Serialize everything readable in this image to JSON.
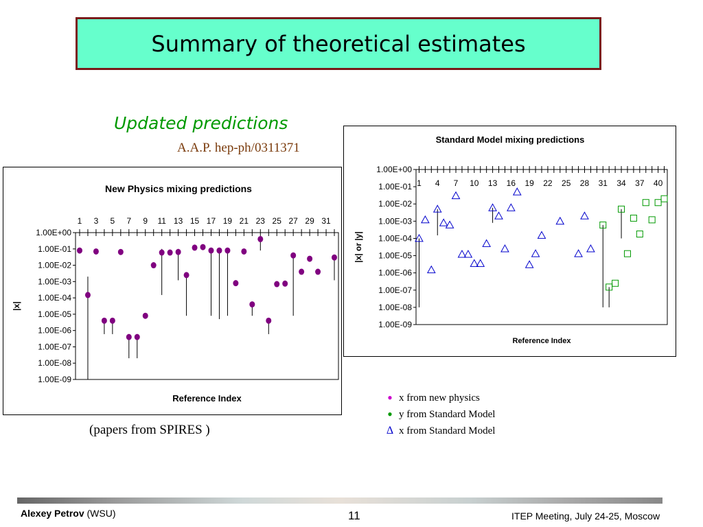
{
  "slide": {
    "title": "Summary of theoretical estimates",
    "subtitle": "Updated predictions",
    "reference": "A.A.P. hep-ph/0311371",
    "papers_note": "(papers from SPIRES )"
  },
  "legend": [
    {
      "marker": "•",
      "label": "x from new physics",
      "color": "#cc00cc"
    },
    {
      "marker": "•",
      "label": "y from Standard Model",
      "color": "#009900"
    },
    {
      "marker": "Δ",
      "label": "x from Standard Model",
      "color": "#0000cc"
    }
  ],
  "footer": {
    "author": "Alexey Petrov",
    "affiliation": "(WSU)",
    "page": "11",
    "event": "ITEP Meeting, July 24-25, Moscow"
  },
  "chart_data": [
    {
      "type": "scatter",
      "title": "New Physics mixing predictions",
      "xlabel": "Reference Index",
      "ylabel": "|x|",
      "yscale": "log",
      "ylim": [
        1e-09,
        1
      ],
      "yticks": [
        "1.00E+00",
        "1.00E-01",
        "1.00E-02",
        "1.00E-03",
        "1.00E-04",
        "1.00E-05",
        "1.00E-06",
        "1.00E-07",
        "1.00E-08",
        "1.00E-09"
      ],
      "xlim": [
        0.5,
        32.5
      ],
      "xticks": [
        "1",
        "3",
        "5",
        "7",
        "9",
        "11",
        "13",
        "15",
        "17",
        "19",
        "21",
        "23",
        "25",
        "27",
        "29",
        "31"
      ],
      "x_axis_position": "top",
      "series": [
        {
          "marker": "dot",
          "color": "#800080",
          "points": [
            {
              "x": 1,
              "y": 0.08
            },
            {
              "x": 2,
              "y": 0.00015,
              "err_low": 1e-09,
              "err_high": 0.002
            },
            {
              "x": 3,
              "y": 0.07
            },
            {
              "x": 4,
              "y": 4e-06,
              "err_low": 6e-07
            },
            {
              "x": 5,
              "y": 4e-06,
              "err_low": 6e-07
            },
            {
              "x": 6,
              "y": 0.065
            },
            {
              "x": 7,
              "y": 4e-07,
              "err_low": 2e-08
            },
            {
              "x": 8,
              "y": 4e-07,
              "err_low": 2e-08
            },
            {
              "x": 9,
              "y": 8e-06
            },
            {
              "x": 10,
              "y": 0.01
            },
            {
              "x": 11,
              "y": 0.06,
              "err_low": 0.00015,
              "err_high": 0.1
            },
            {
              "x": 12,
              "y": 0.06
            },
            {
              "x": 13,
              "y": 0.065,
              "err_low": 0.0012,
              "err_high": 0.1
            },
            {
              "x": 14,
              "y": 0.0025,
              "err_low": 8e-06
            },
            {
              "x": 15,
              "y": 0.12
            },
            {
              "x": 16,
              "y": 0.13
            },
            {
              "x": 17,
              "y": 0.08,
              "err_low": 8e-06
            },
            {
              "x": 18,
              "y": 0.08,
              "err_low": 5e-06
            },
            {
              "x": 19,
              "y": 0.08,
              "err_low": 8e-06
            },
            {
              "x": 20,
              "y": 0.0008
            },
            {
              "x": 21,
              "y": 0.07
            },
            {
              "x": 22,
              "y": 4e-05,
              "err_low": 8e-06
            },
            {
              "x": 23,
              "y": 0.4,
              "err_low": 0.08
            },
            {
              "x": 24,
              "y": 4e-06,
              "err_low": 6e-07
            },
            {
              "x": 25,
              "y": 0.0007
            },
            {
              "x": 26,
              "y": 0.00075
            },
            {
              "x": 27,
              "y": 0.04,
              "err_low": 8e-06
            },
            {
              "x": 28,
              "y": 0.004
            },
            {
              "x": 29,
              "y": 0.025
            },
            {
              "x": 30,
              "y": 0.004
            },
            {
              "x": 32,
              "y": 0.03,
              "err_low": 0.0012
            }
          ]
        }
      ]
    },
    {
      "type": "scatter",
      "title": "Standard Model mixing predictions",
      "xlabel": "Reference Index",
      "ylabel": "|x| or |y|",
      "yscale": "log",
      "ylim": [
        1e-09,
        1
      ],
      "yticks": [
        "1.00E+00",
        "1.00E-01",
        "1.00E-02",
        "1.00E-03",
        "1.00E-04",
        "1.00E-05",
        "1.00E-06",
        "1.00E-07",
        "1.00E-08",
        "1.00E-09"
      ],
      "xlim": [
        0.5,
        41.5
      ],
      "xticks": [
        "1",
        "4",
        "7",
        "10",
        "13",
        "16",
        "19",
        "22",
        "25",
        "28",
        "31",
        "34",
        "37",
        "40"
      ],
      "x_axis_position": "top",
      "series": [
        {
          "marker": "triangle",
          "color": "#0000cc",
          "points": [
            {
              "x": 1,
              "y": 0.0001,
              "err_low": 1e-08
            },
            {
              "x": 2,
              "y": 0.0012
            },
            {
              "x": 3,
              "y": 1.5e-06
            },
            {
              "x": 4,
              "y": 0.005,
              "err_low": 0.00015
            },
            {
              "x": 5,
              "y": 0.0008
            },
            {
              "x": 6,
              "y": 0.0006
            },
            {
              "x": 7,
              "y": 0.03
            },
            {
              "x": 8,
              "y": 1.2e-05
            },
            {
              "x": 9,
              "y": 1.2e-05
            },
            {
              "x": 10,
              "y": 3.5e-06
            },
            {
              "x": 11,
              "y": 3.5e-06
            },
            {
              "x": 12,
              "y": 5e-05
            },
            {
              "x": 13,
              "y": 0.006,
              "err_low": 0.0008
            },
            {
              "x": 14,
              "y": 0.002
            },
            {
              "x": 15,
              "y": 2.5e-05
            },
            {
              "x": 16,
              "y": 0.006
            },
            {
              "x": 17,
              "y": 0.05
            },
            {
              "x": 19,
              "y": 3e-06
            },
            {
              "x": 20,
              "y": 1.3e-05
            },
            {
              "x": 21,
              "y": 0.00015
            },
            {
              "x": 24,
              "y": 0.001
            },
            {
              "x": 27,
              "y": 1.3e-05
            },
            {
              "x": 28,
              "y": 0.002
            },
            {
              "x": 29,
              "y": 2.5e-05
            }
          ]
        },
        {
          "marker": "square",
          "color": "#009900",
          "points": [
            {
              "x": 31,
              "y": 0.0006,
              "err_low": 1e-08
            },
            {
              "x": 32,
              "y": 1.5e-07,
              "err_low": 1e-08
            },
            {
              "x": 33,
              "y": 2.5e-07
            },
            {
              "x": 34,
              "y": 0.005,
              "err_low": 0.0001
            },
            {
              "x": 35,
              "y": 1.3e-05
            },
            {
              "x": 36,
              "y": 0.0015
            },
            {
              "x": 37,
              "y": 0.00018
            },
            {
              "x": 38,
              "y": 0.012
            },
            {
              "x": 39,
              "y": 0.0012
            },
            {
              "x": 40,
              "y": 0.012
            },
            {
              "x": 41,
              "y": 0.02
            }
          ]
        }
      ]
    }
  ]
}
